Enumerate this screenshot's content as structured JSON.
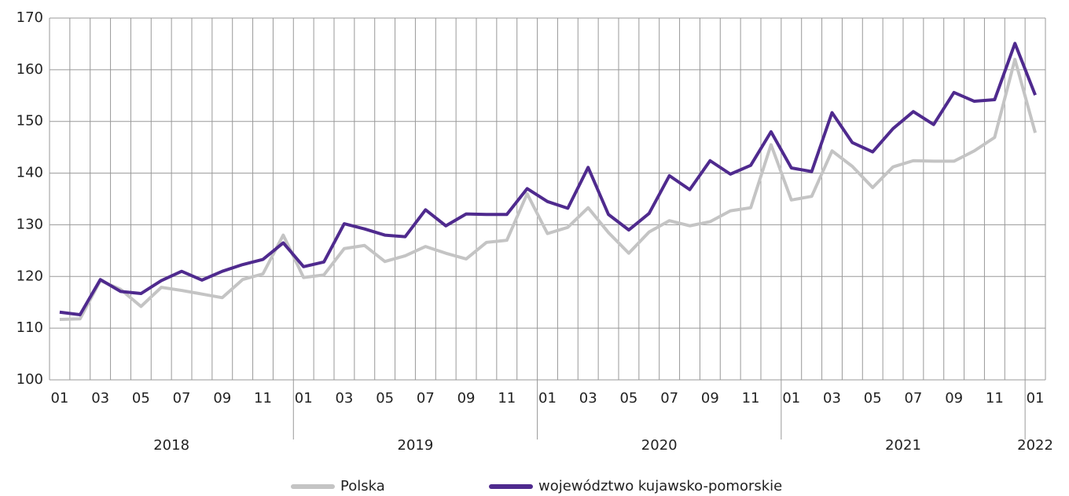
{
  "chart_data": {
    "type": "line",
    "categories": [
      "01",
      null,
      "03",
      null,
      "05",
      null,
      "07",
      null,
      "09",
      null,
      "11",
      null,
      "01",
      null,
      "03",
      null,
      "05",
      null,
      "07",
      null,
      "09",
      null,
      "11",
      null,
      "01",
      null,
      "03",
      null,
      "05",
      null,
      "07",
      null,
      "09",
      null,
      "11",
      null,
      "01",
      null,
      "03",
      null,
      "05",
      null,
      "07",
      null,
      "09",
      null,
      "11",
      null,
      "01"
    ],
    "years": [
      "2018",
      "2019",
      "2020",
      "2021",
      "2022"
    ],
    "series": [
      {
        "name": "Polska",
        "color": "#c4c4c4",
        "values": [
          111.7,
          111.8,
          119.2,
          117.5,
          114.2,
          117.9,
          117.3,
          116.6,
          115.9,
          119.4,
          120.5,
          128.0,
          119.8,
          120.3,
          125.4,
          126.0,
          122.9,
          124.0,
          125.8,
          124.5,
          123.4,
          126.6,
          127.0,
          136.0,
          128.3,
          129.5,
          133.3,
          128.5,
          124.5,
          128.6,
          130.8,
          129.8,
          130.6,
          132.7,
          133.3,
          145.5,
          134.8,
          135.5,
          144.3,
          141.3,
          137.2,
          141.2,
          142.4,
          142.3,
          142.3,
          144.3,
          146.9,
          162.0,
          147.8
        ]
      },
      {
        "name": "województwo kujawsko-pomorskie",
        "color": "#4f2a8e",
        "values": [
          113.1,
          112.6,
          119.4,
          117.1,
          116.7,
          119.2,
          121.0,
          119.3,
          121.0,
          122.3,
          123.3,
          126.5,
          121.9,
          122.8,
          130.2,
          129.2,
          128.0,
          127.7,
          132.9,
          129.8,
          132.1,
          132.0,
          132.0,
          137.0,
          134.5,
          133.2,
          141.1,
          132.0,
          129.0,
          132.2,
          139.5,
          136.8,
          142.4,
          139.8,
          141.5,
          148.0,
          141.0,
          140.3,
          151.7,
          145.9,
          144.1,
          148.6,
          151.9,
          149.4,
          155.6,
          153.9,
          154.2,
          165.1,
          155.1
        ]
      }
    ],
    "ylim": [
      100,
      170
    ],
    "yticks": [
      100,
      110,
      120,
      130,
      140,
      150,
      160,
      170
    ],
    "grid": true
  }
}
